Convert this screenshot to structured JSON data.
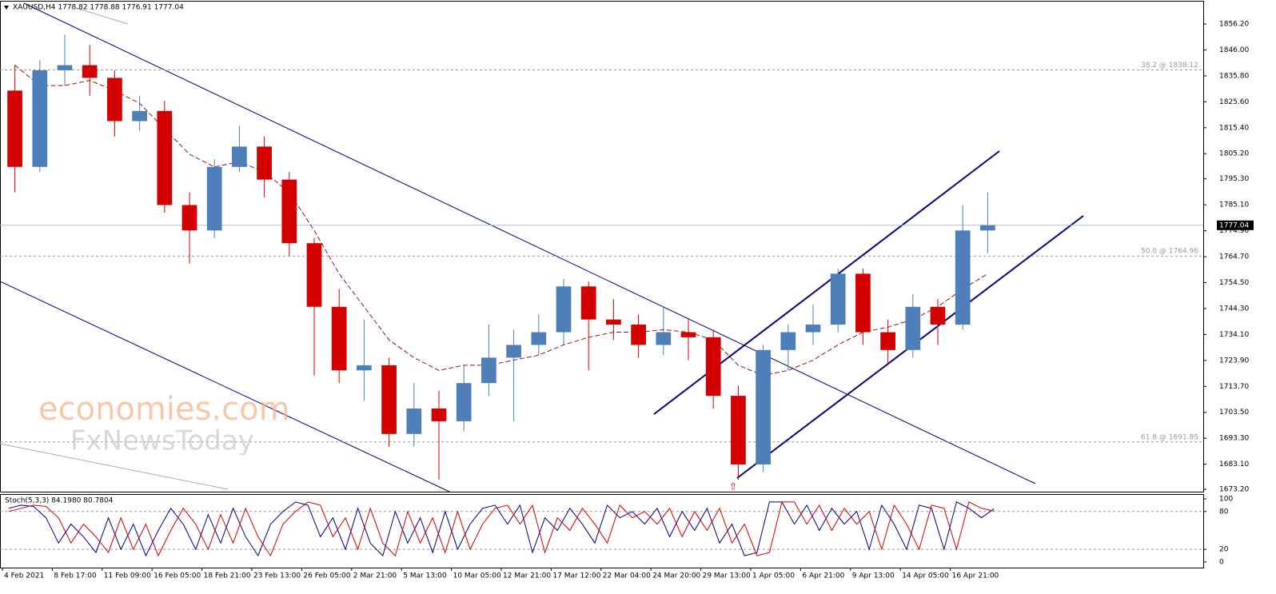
{
  "chart_data": [
    {
      "type": "candlestick",
      "title": "XAUUSD,H4  1778.82 1778.88 1776.91 1777.04",
      "categories": [
        "4 Feb 2021",
        null,
        "8 Feb 17:00",
        null,
        "11 Feb 09:00",
        null,
        "16 Feb 05:00",
        null,
        "18 Feb 21:00",
        null,
        "23 Feb 13:00",
        null,
        "26 Feb 05:00",
        null,
        "2 Mar 21:00",
        null,
        "5 Mar 13:00",
        null,
        "10 Mar 05:00",
        null,
        "12 Mar 21:00",
        null,
        "17 Mar 12:00",
        null,
        "22 Mar 04:00",
        null,
        "24 Mar 20:00",
        null,
        "29 Mar 13:00",
        null,
        "1 Apr 05:00",
        null,
        "6 Apr 21:00",
        null,
        "9 Apr 13:00",
        null,
        "14 Apr 05:00",
        null,
        "16 Apr 21:00",
        null
      ],
      "open": [
        1830,
        1800,
        1838,
        1840,
        1835,
        1818,
        1822,
        1785,
        1775,
        1800,
        1808,
        1795,
        1770,
        1745,
        1720,
        1722,
        1695,
        1705,
        1700,
        1715,
        1725,
        1730,
        1735,
        1753,
        1740,
        1738,
        1730,
        1735,
        1733,
        1710,
        1683,
        1728,
        1735,
        1738,
        1758,
        1735,
        1728,
        1745,
        1738,
        1775
      ],
      "high": [
        1840,
        1842,
        1852,
        1848,
        1838,
        1828,
        1826,
        1790,
        1803,
        1816,
        1812,
        1798,
        1772,
        1752,
        1740,
        1725,
        1715,
        1712,
        1722,
        1738,
        1736,
        1742,
        1756,
        1755,
        1748,
        1742,
        1745,
        1740,
        1736,
        1714,
        1730,
        1738,
        1746,
        1760,
        1760,
        1740,
        1750,
        1748,
        1785,
        1790
      ],
      "low": [
        1790,
        1798,
        1832,
        1828,
        1812,
        1814,
        1782,
        1762,
        1772,
        1798,
        1788,
        1765,
        1718,
        1715,
        1708,
        1690,
        1690,
        1677,
        1696,
        1710,
        1700,
        1726,
        1730,
        1720,
        1732,
        1725,
        1726,
        1724,
        1705,
        1677,
        1680,
        1720,
        1730,
        1735,
        1730,
        1722,
        1725,
        1730,
        1736,
        1766
      ],
      "close": [
        1800,
        1838,
        1840,
        1835,
        1818,
        1822,
        1785,
        1775,
        1800,
        1808,
        1795,
        1770,
        1745,
        1720,
        1722,
        1695,
        1705,
        1700,
        1715,
        1725,
        1730,
        1735,
        1753,
        1740,
        1738,
        1730,
        1735,
        1733,
        1710,
        1683,
        1728,
        1735,
        1738,
        1758,
        1735,
        1728,
        1745,
        1738,
        1775,
        1777.04
      ],
      "up_color": "#4f7fb8",
      "down_color": "#d40000",
      "ma": {
        "color": "#8b1a1a",
        "values": [
          1840,
          1832,
          1832,
          1834,
          1830,
          1825,
          1815,
          1805,
          1800,
          1802,
          1798,
          1790,
          1775,
          1758,
          1745,
          1732,
          1725,
          1720,
          1722,
          1722,
          1724,
          1726,
          1730,
          1733,
          1735,
          1735,
          1736,
          1735,
          1732,
          1722,
          1718,
          1720,
          1724,
          1730,
          1735,
          1737,
          1740,
          1745,
          1752,
          1758
        ]
      },
      "ylim": [
        1672.3,
        1865.0
      ],
      "yticks": [
        {
          "value": 1856.2,
          "label": "1856.20"
        },
        {
          "value": 1846.0,
          "label": "1846.00"
        },
        {
          "value": 1835.8,
          "label": "1835.80"
        },
        {
          "value": 1825.6,
          "label": "1825.60"
        },
        {
          "value": 1815.4,
          "label": "1815.40"
        },
        {
          "value": 1805.2,
          "label": "1805.20"
        },
        {
          "value": 1795.3,
          "label": "1795.30"
        },
        {
          "value": 1785.1,
          "label": "1785.10"
        },
        {
          "value": 1774.9,
          "label": "1774.90"
        },
        {
          "value": 1764.7,
          "label": "1764.70"
        },
        {
          "value": 1754.5,
          "label": "1754.50"
        },
        {
          "value": 1744.3,
          "label": "1744.30"
        },
        {
          "value": 1734.1,
          "label": "1734.10"
        },
        {
          "value": 1723.9,
          "label": "1723.90"
        },
        {
          "value": 1713.7,
          "label": "1713.70"
        },
        {
          "value": 1703.5,
          "label": "1703.50"
        },
        {
          "value": 1693.3,
          "label": "1693.30"
        },
        {
          "value": 1683.1,
          "label": "1683.10"
        },
        {
          "value": 1673.2,
          "label": "1673.20"
        }
      ],
      "current_price": {
        "value": 1777.04,
        "label": "1777.04"
      },
      "fib_levels": [
        {
          "value": 1838.12,
          "label": "38.2 @ 1838.12"
        },
        {
          "value": 1764.96,
          "label": "50.0 @ 1764.96"
        },
        {
          "value": 1691.85,
          "label": "61.8 @ 1691.85"
        }
      ],
      "annotations": [
        "economies.com",
        "FxNewsToday"
      ]
    },
    {
      "type": "line",
      "title": "Stoch(5,3,3) 84.1980 80.7804",
      "series": [
        {
          "color": "#000080",
          "values": [
            85,
            90,
            88,
            70,
            30,
            60,
            40,
            15,
            70,
            20,
            60,
            10,
            50,
            85,
            60,
            20,
            75,
            30,
            85,
            40,
            10,
            60,
            80,
            95,
            90,
            40,
            70,
            20,
            85,
            30,
            10,
            80,
            30,
            70,
            15,
            80,
            20,
            60,
            85,
            90,
            60,
            90,
            15,
            70,
            50,
            85,
            60,
            30,
            90,
            70,
            80,
            60,
            85,
            40,
            80,
            50,
            85,
            30,
            60,
            10,
            15,
            95,
            95,
            60,
            90,
            50,
            85,
            60,
            80,
            20,
            90,
            60,
            20,
            90,
            85,
            20,
            95,
            85,
            70,
            84.2
          ]
        },
        {
          "color": "#d40000",
          "values": [
            80,
            85,
            90,
            88,
            70,
            30,
            60,
            40,
            15,
            70,
            20,
            60,
            10,
            50,
            85,
            60,
            20,
            75,
            30,
            85,
            40,
            10,
            60,
            80,
            95,
            90,
            40,
            70,
            20,
            85,
            30,
            10,
            80,
            30,
            70,
            15,
            80,
            20,
            60,
            85,
            90,
            60,
            90,
            15,
            70,
            50,
            85,
            60,
            30,
            90,
            70,
            80,
            60,
            85,
            40,
            80,
            50,
            85,
            30,
            60,
            10,
            15,
            95,
            95,
            60,
            90,
            50,
            85,
            60,
            80,
            20,
            90,
            60,
            20,
            90,
            85,
            20,
            95,
            85,
            80.78
          ]
        }
      ],
      "ylim": [
        -8.9,
        106.3
      ],
      "yticks": [
        100,
        80,
        20,
        0
      ],
      "levels": [
        80,
        20
      ]
    }
  ]
}
